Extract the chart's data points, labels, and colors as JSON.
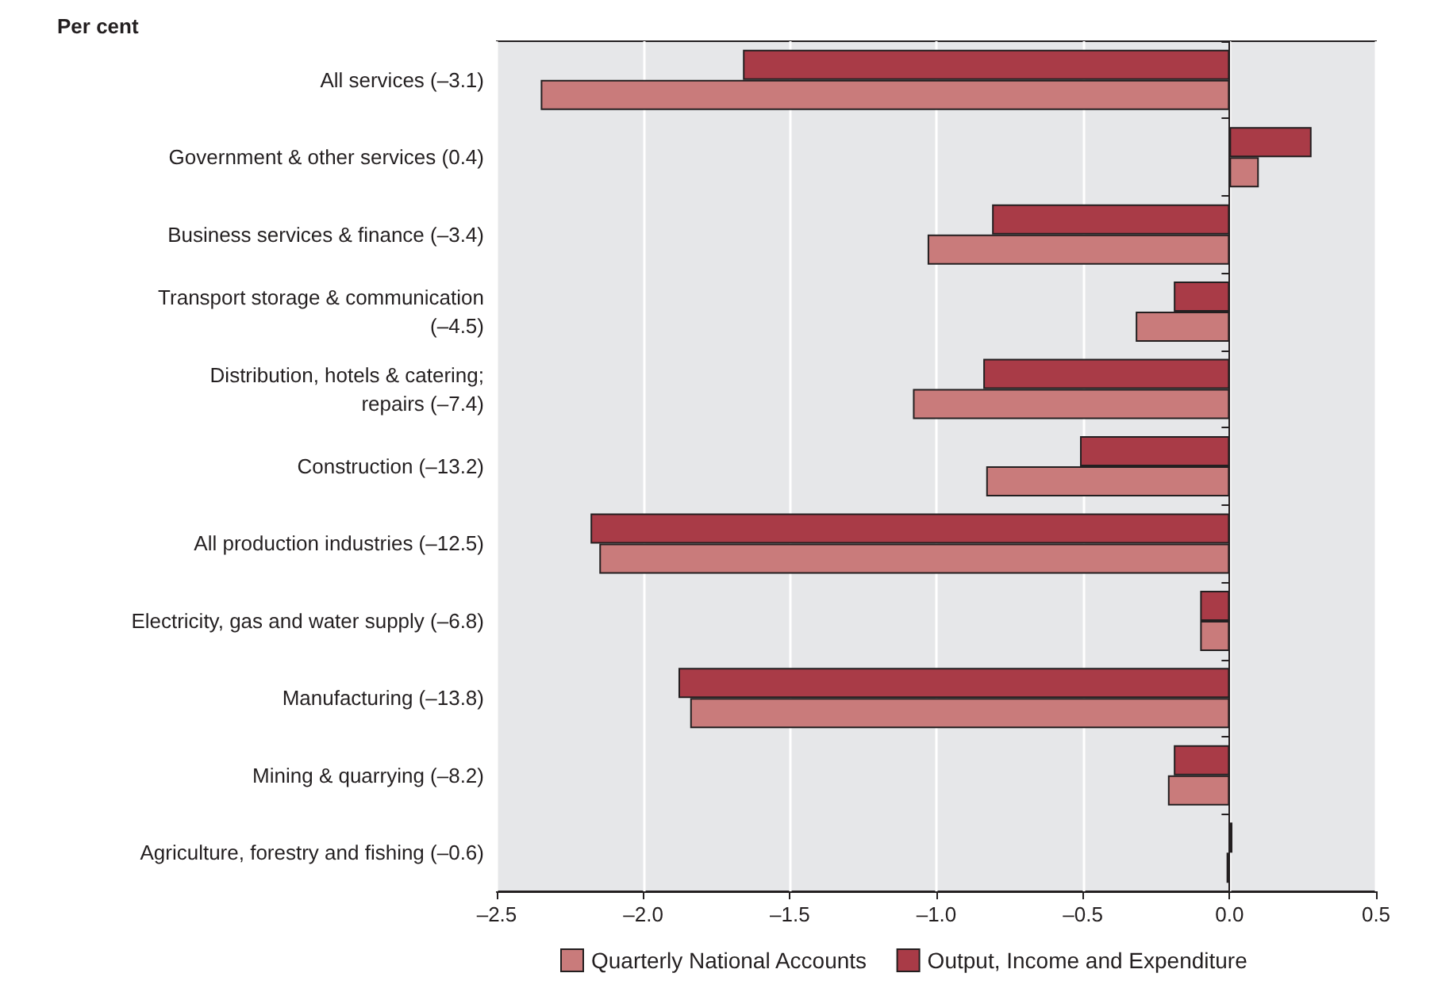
{
  "chart_data": {
    "type": "bar",
    "orientation": "horizontal",
    "xlabel": "Per cent",
    "categories": [
      "All services (–3.1)",
      "Government & other services (0.4)",
      "Business services & finance (–3.4)",
      "Transport storage & communication\n(–4.5)",
      "Distribution, hotels & catering;\nrepairs (–7.4)",
      "Construction (–13.2)",
      "All production industries (–12.5)",
      "Electricity, gas and water supply (–6.8)",
      "Manufacturing (–13.8)",
      "Mining & quarrying (–8.2)",
      "Agriculture, forestry and fishing (–0.6)"
    ],
    "series": [
      {
        "name": "Quarterly National Accounts",
        "color": "#c97b7b",
        "values": [
          -2.35,
          0.1,
          -1.03,
          -0.32,
          -1.08,
          -0.83,
          -2.15,
          -0.1,
          -1.84,
          -0.21,
          -0.01
        ]
      },
      {
        "name": "Output, Income and Expenditure",
        "color": "#a93b47",
        "values": [
          -1.66,
          0.28,
          -0.81,
          -0.19,
          -0.84,
          -0.51,
          -2.18,
          -0.1,
          -1.88,
          -0.19,
          0.01
        ]
      }
    ],
    "xlim": [
      -2.5,
      0.5
    ],
    "xticks": [
      {
        "value": -2.5,
        "label": "–2.5"
      },
      {
        "value": -2,
        "label": "–2.0"
      },
      {
        "value": -1.5,
        "label": "–1.5"
      },
      {
        "value": -1,
        "label": "–1.0"
      },
      {
        "value": -0.5,
        "label": "–0.5"
      },
      {
        "value": 0,
        "label": "0.0"
      },
      {
        "value": 0.5,
        "label": "0.5"
      }
    ],
    "grid": "x",
    "legend": "bottom"
  }
}
